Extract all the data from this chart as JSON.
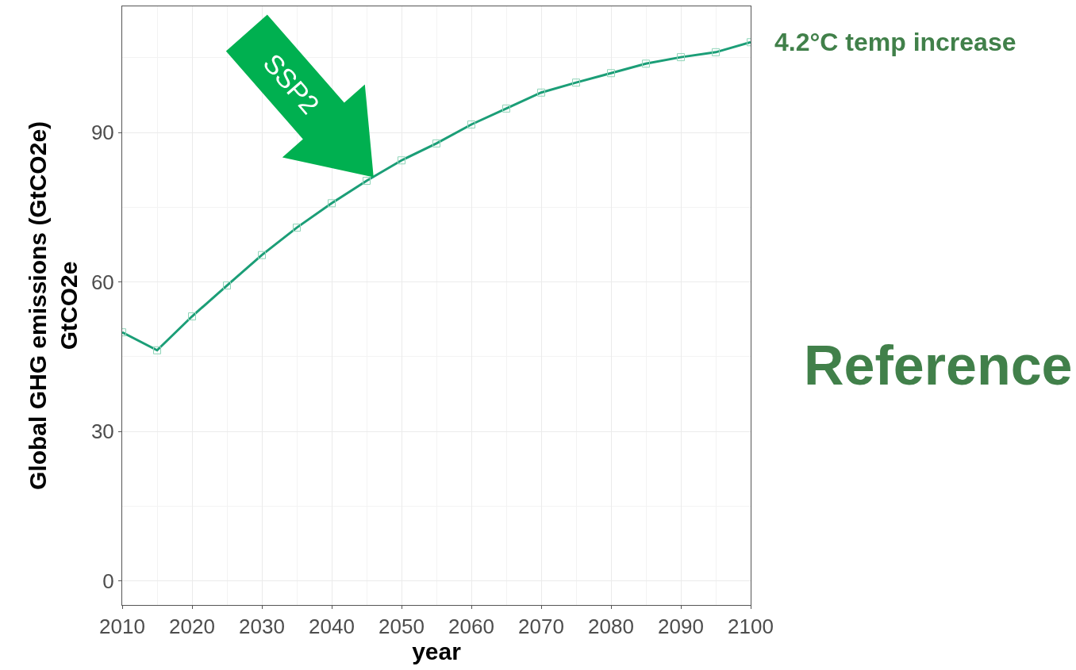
{
  "chart_data": {
    "type": "line",
    "xlabel": "year",
    "ylabel": "Global GHG emissions (GtCO2e)\nGtCO2e",
    "x": [
      2010,
      2015,
      2020,
      2025,
      2030,
      2035,
      2040,
      2045,
      2050,
      2055,
      2060,
      2065,
      2070,
      2075,
      2080,
      2085,
      2090,
      2095,
      2100
    ],
    "series": [
      {
        "color": "#1b9e77",
        "values": [
          49.9,
          46.3,
          53.1,
          59.3,
          65.4,
          70.9,
          75.8,
          80.3,
          84.4,
          87.8,
          91.6,
          94.8,
          98.0,
          100.0,
          101.9,
          103.8,
          105.1,
          106.1,
          108.1
        ]
      }
    ],
    "xlim": [
      2010,
      2100
    ],
    "xticks": [
      2010,
      2020,
      2030,
      2040,
      2050,
      2060,
      2070,
      2080,
      2090,
      2100
    ],
    "ylim": [
      -4.8,
      115.3
    ],
    "yticks": [
      0,
      30,
      60,
      90
    ],
    "grid": true,
    "marker": "square",
    "line_style": "solid",
    "annotations": [
      {
        "text": "SSP2",
        "x": 2046,
        "y": 81
      },
      {
        "text": "4.2°C temp increase",
        "x": 2100,
        "y": 108.1
      },
      "Reference"
    ]
  }
}
